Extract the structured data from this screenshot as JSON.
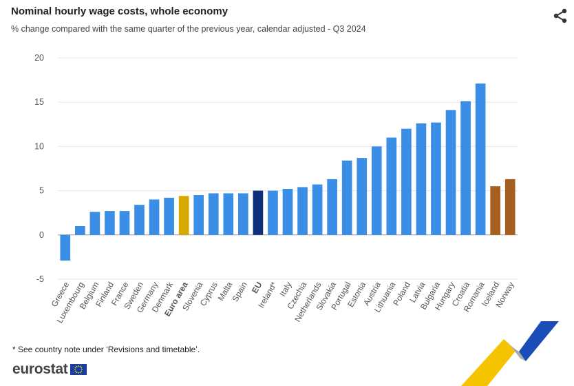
{
  "header": {
    "title": "Nominal hourly wage costs, whole economy",
    "subtitle": "% change compared with the same quarter of the previous year, calendar adjusted - Q3 2024"
  },
  "footer": {
    "note": "* See country note under ‘Revisions and timetable’.",
    "logo_text": "eurostat"
  },
  "icons": {
    "share": "share-icon",
    "flag": "eu-flag-icon"
  },
  "colors": {
    "country": "#3a8ee6",
    "euro_area": "#d4a900",
    "eu": "#0e2f7a",
    "efta": "#a65f1e",
    "grid": "#e6e6e6",
    "axis_text": "#555555"
  },
  "chart_data": {
    "type": "bar",
    "title": "Nominal hourly wage costs, whole economy",
    "subtitle": "% change compared with the same quarter of the previous year, calendar adjusted - Q3 2024",
    "ylim": [
      -5,
      20
    ],
    "yticks": [
      -5,
      0,
      5,
      10,
      15,
      20
    ],
    "grid": true,
    "categories": [
      "Greece",
      "Luxembourg",
      "Belgium",
      "Finland",
      "France",
      "Sweden",
      "Germany",
      "Denmark",
      "Euro area",
      "Slovenia",
      "Cyprus",
      "Malta",
      "Spain",
      "EU",
      "Ireland*",
      "Italy",
      "Czechia",
      "Netherlands",
      "Slovakia",
      "Portugal",
      "Estonia",
      "Austria",
      "Lithuania",
      "Poland",
      "Latvia",
      "Bulgaria",
      "Hungary",
      "Croatia",
      "Romania",
      "Iceland",
      "Norway"
    ],
    "values": [
      -2.9,
      1.0,
      2.6,
      2.7,
      2.7,
      3.4,
      4.0,
      4.2,
      4.4,
      4.5,
      4.7,
      4.7,
      4.7,
      5.0,
      5.0,
      5.2,
      5.4,
      5.7,
      6.3,
      8.4,
      8.7,
      10.0,
      11.0,
      12.0,
      12.6,
      12.7,
      14.1,
      15.1,
      17.1,
      5.5,
      6.3
    ],
    "groups": [
      "country",
      "country",
      "country",
      "country",
      "country",
      "country",
      "country",
      "country",
      "euro_area",
      "country",
      "country",
      "country",
      "country",
      "eu",
      "country",
      "country",
      "country",
      "country",
      "country",
      "country",
      "country",
      "country",
      "country",
      "country",
      "country",
      "country",
      "country",
      "country",
      "country",
      "efta",
      "efta"
    ],
    "bold_labels": [
      "Euro area",
      "EU"
    ]
  }
}
